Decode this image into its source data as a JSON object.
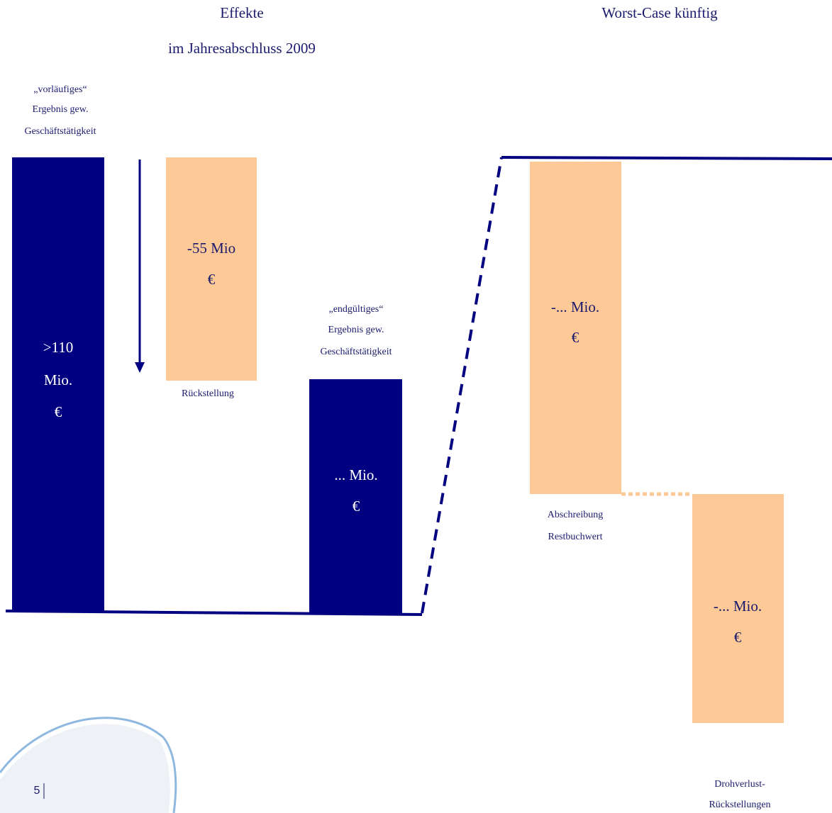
{
  "header": {
    "left_title": [
      "Effekte",
      "im Jahresabschluss 2009"
    ],
    "right_title": "Worst-Case künftig"
  },
  "blocks": [
    {
      "caption": [
        "„vorläufiges“",
        "Ergebnis gew.",
        "Geschäftstätigkeit"
      ],
      "value": [
        ">110",
        "Mio.",
        "€"
      ]
    },
    {
      "caption": [
        "Rückstellung"
      ],
      "value": [
        "-55 Mio",
        "€"
      ]
    },
    {
      "caption": [
        "„endgültiges“",
        "Ergebnis gew.",
        "Geschäftstätigkeit"
      ],
      "value": [
        "... Mio.",
        "€"
      ]
    },
    {
      "caption": [
        "Abschreibung",
        "Restbuchwert"
      ],
      "value": [
        "-... Mio.",
        "€"
      ]
    },
    {
      "caption": [
        "Drohverlust-",
        "Rückstellungen"
      ],
      "value": [
        "-... Mio.",
        "€"
      ]
    }
  ],
  "footer": {
    "page_number": "5"
  }
}
